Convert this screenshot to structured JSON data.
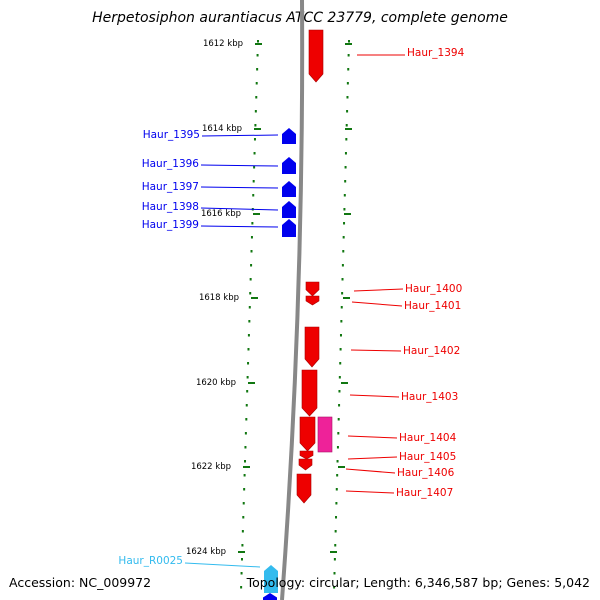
{
  "title": "Herpetosiphon aurantiacus ATCC 23779, complete genome",
  "footer": {
    "accession_label": "Accession:",
    "accession": "NC_009972",
    "topology_label": "Topology:",
    "topology": "circular",
    "length_label": "Length:",
    "length": "6,346,587 bp",
    "genes_label": "Genes:",
    "genes": "5,042"
  },
  "colors": {
    "forward_gene": "#0000ee",
    "reverse_gene": "#ee0000",
    "rna_gene": "#33bbee",
    "pink_feature": "#ee2299",
    "scale_tick": "#117711",
    "backbone": "#888888"
  },
  "scale_ticks": [
    {
      "label": "1612 kbp"
    },
    {
      "label": "1614 kbp"
    },
    {
      "label": "1616 kbp"
    },
    {
      "label": "1618 kbp"
    },
    {
      "label": "1620 kbp"
    },
    {
      "label": "1622 kbp"
    },
    {
      "label": "1624 kbp"
    }
  ],
  "genes_left": [
    {
      "name": "Haur_1395",
      "strand": "forward"
    },
    {
      "name": "Haur_1396",
      "strand": "forward"
    },
    {
      "name": "Haur_1397",
      "strand": "forward"
    },
    {
      "name": "Haur_1398",
      "strand": "forward"
    },
    {
      "name": "Haur_1399",
      "strand": "forward"
    },
    {
      "name": "Haur_R0025",
      "strand": "forward",
      "type": "rna"
    }
  ],
  "genes_right": [
    {
      "name": "Haur_1394",
      "strand": "reverse"
    },
    {
      "name": "Haur_1400",
      "strand": "reverse"
    },
    {
      "name": "Haur_1401",
      "strand": "reverse"
    },
    {
      "name": "Haur_1402",
      "strand": "reverse"
    },
    {
      "name": "Haur_1403",
      "strand": "reverse"
    },
    {
      "name": "Haur_1404",
      "strand": "reverse",
      "type": "pink"
    },
    {
      "name": "Haur_1405",
      "strand": "reverse"
    },
    {
      "name": "Haur_1406",
      "strand": "reverse"
    },
    {
      "name": "Haur_1407",
      "strand": "reverse"
    }
  ]
}
